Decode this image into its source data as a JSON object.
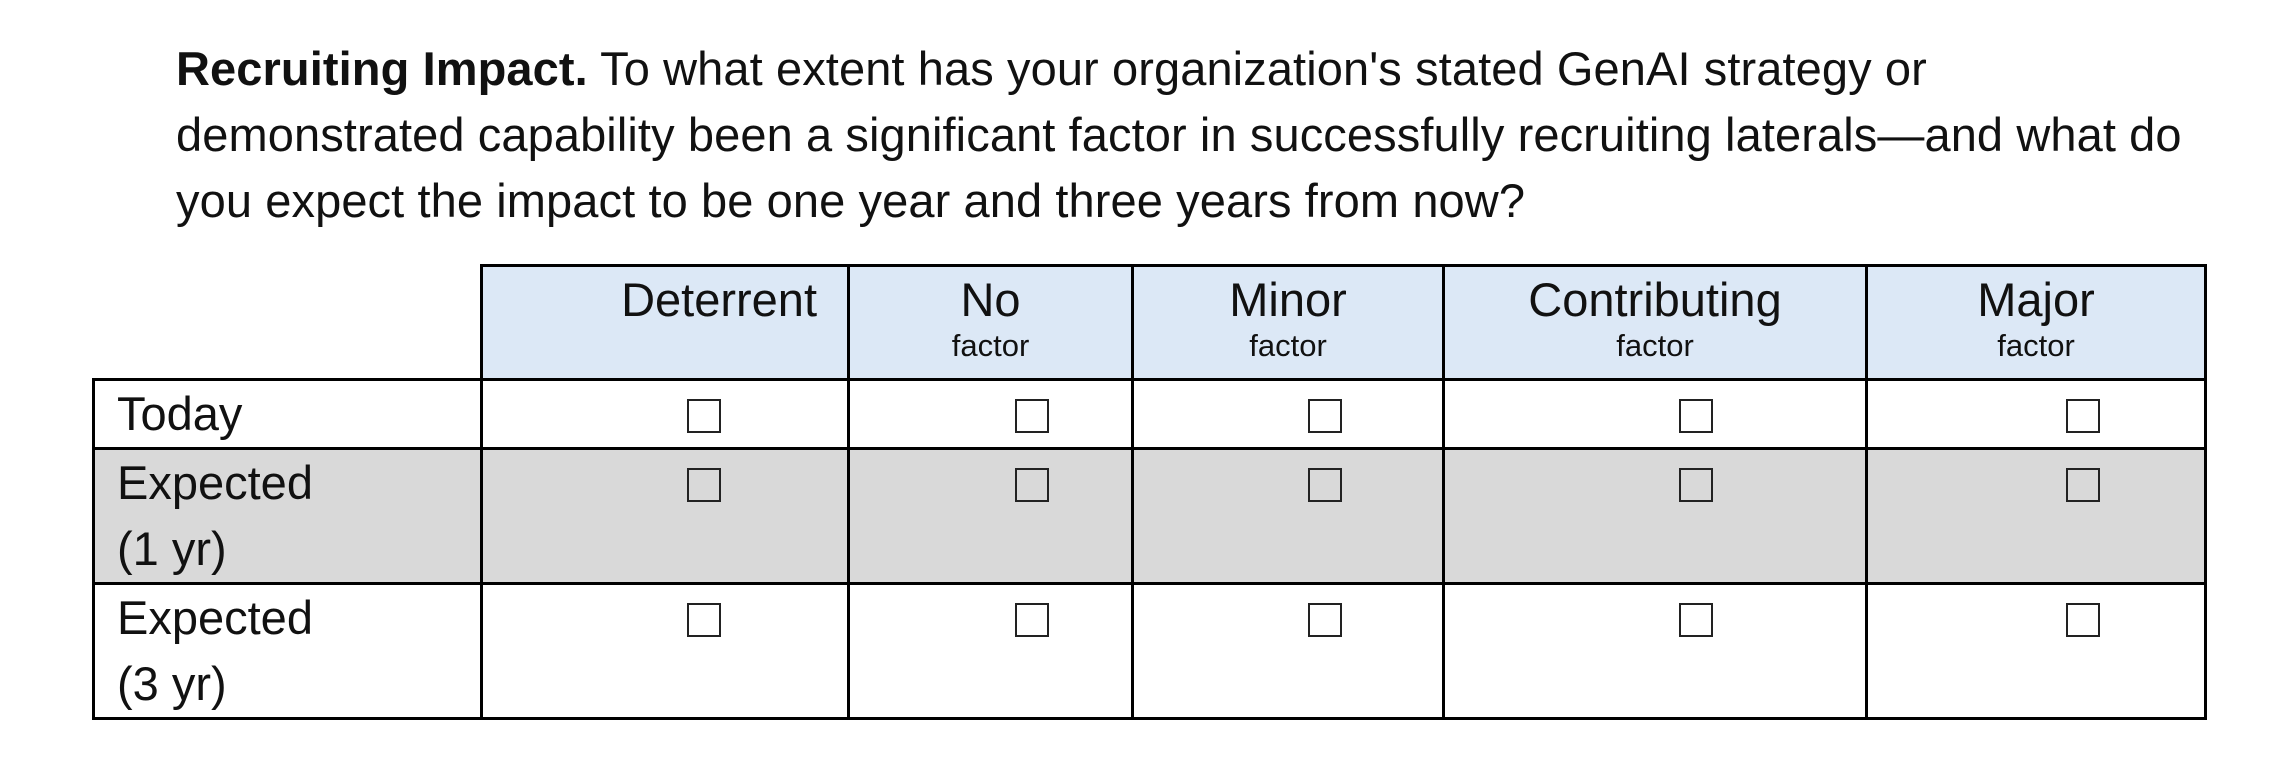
{
  "question": {
    "title": "Recruiting Impact.",
    "text": " To what extent has your organization's stated GenAI strategy or demonstrated capability been a significant factor in successfully recruiting laterals—and what do you expect the impact to be one year and three years from now?"
  },
  "columns": [
    {
      "label": "Deterrent",
      "sub": ""
    },
    {
      "label": "No",
      "sub": "factor"
    },
    {
      "label": "Minor",
      "sub": "factor"
    },
    {
      "label": "Contributing",
      "sub": "factor"
    },
    {
      "label": "Major",
      "sub": "factor"
    }
  ],
  "rows": [
    {
      "line1": "Today",
      "line2": ""
    },
    {
      "line1": "Expected",
      "line2": "(1 yr)"
    },
    {
      "line1": "Expected",
      "line2": "(3 yr)"
    }
  ],
  "colors": {
    "header_bg": "#dce8f6",
    "shaded_row_bg": "#d9d9d9",
    "border": "#000000"
  },
  "icons": {
    "checkbox": "empty-square-checkbox"
  }
}
